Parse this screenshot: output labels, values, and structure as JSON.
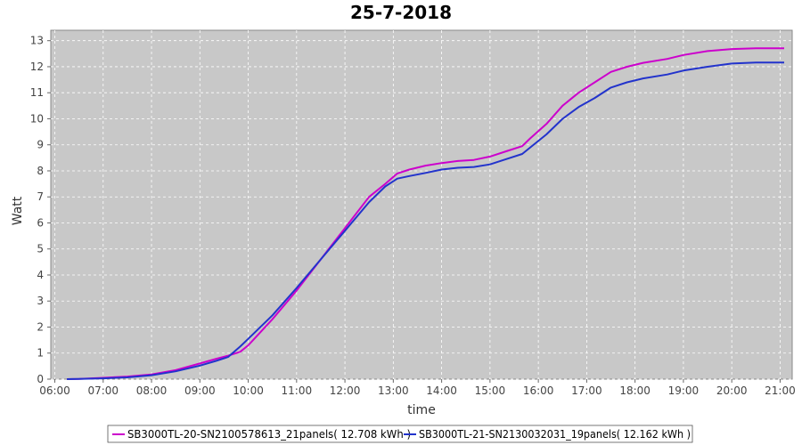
{
  "chart_data": {
    "type": "line",
    "title": "25-7-2018",
    "xlabel": "time",
    "ylabel": "Watt",
    "ylim": [
      0,
      13.4
    ],
    "yticks": [
      0,
      1,
      2,
      3,
      4,
      5,
      6,
      7,
      8,
      9,
      10,
      11,
      12,
      13
    ],
    "xlim": [
      "05:55",
      "21:15"
    ],
    "xticks": [
      "06:00",
      "07:00",
      "08:00",
      "09:00",
      "10:00",
      "11:00",
      "12:00",
      "13:00",
      "14:00",
      "15:00",
      "16:00",
      "17:00",
      "18:00",
      "19:00",
      "20:00",
      "21:00"
    ],
    "grid": true,
    "legend": "bottom",
    "series": [
      {
        "name": "SB3000TL-20-SN2100578613_21panels( 12.708 kWh )",
        "color": "#cc00cc",
        "x": [
          "06:15",
          "06:30",
          "07:00",
          "07:30",
          "08:00",
          "08:30",
          "09:00",
          "09:20",
          "09:35",
          "09:50",
          "10:00",
          "10:30",
          "11:00",
          "11:30",
          "12:00",
          "12:30",
          "12:50",
          "13:05",
          "13:20",
          "13:40",
          "14:00",
          "14:20",
          "14:40",
          "15:00",
          "15:20",
          "15:40",
          "15:50",
          "16:10",
          "16:30",
          "16:50",
          "17:10",
          "17:30",
          "17:50",
          "18:10",
          "18:40",
          "19:00",
          "19:30",
          "20:00",
          "20:30",
          "21:05"
        ],
        "y": [
          0.0,
          0.01,
          0.05,
          0.1,
          0.18,
          0.35,
          0.6,
          0.78,
          0.9,
          1.05,
          1.3,
          2.3,
          3.4,
          4.6,
          5.8,
          7.0,
          7.5,
          7.9,
          8.05,
          8.2,
          8.3,
          8.38,
          8.42,
          8.55,
          8.75,
          8.95,
          9.25,
          9.8,
          10.5,
          11.0,
          11.4,
          11.8,
          12.0,
          12.15,
          12.3,
          12.45,
          12.6,
          12.68,
          12.71,
          12.71
        ]
      },
      {
        "name": "SB3000TL-21-SN2130032031_19panels( 12.162 kWh )",
        "color": "#2233cc",
        "x": [
          "06:15",
          "06:30",
          "07:00",
          "07:30",
          "08:00",
          "08:30",
          "09:00",
          "09:20",
          "09:35",
          "09:50",
          "10:00",
          "10:30",
          "11:00",
          "11:30",
          "12:00",
          "12:30",
          "12:50",
          "13:05",
          "13:20",
          "13:40",
          "14:00",
          "14:20",
          "14:40",
          "15:00",
          "15:20",
          "15:40",
          "15:50",
          "16:10",
          "16:30",
          "16:50",
          "17:10",
          "17:30",
          "17:50",
          "18:10",
          "18:40",
          "19:00",
          "19:30",
          "20:00",
          "20:30",
          "21:05"
        ],
        "y": [
          0.0,
          0.01,
          0.03,
          0.07,
          0.15,
          0.3,
          0.52,
          0.7,
          0.85,
          1.25,
          1.55,
          2.45,
          3.5,
          4.6,
          5.7,
          6.8,
          7.4,
          7.7,
          7.8,
          7.92,
          8.05,
          8.12,
          8.15,
          8.25,
          8.45,
          8.65,
          8.9,
          9.4,
          10.0,
          10.45,
          10.8,
          11.2,
          11.4,
          11.55,
          11.7,
          11.85,
          12.0,
          12.12,
          12.16,
          12.16
        ]
      }
    ]
  }
}
